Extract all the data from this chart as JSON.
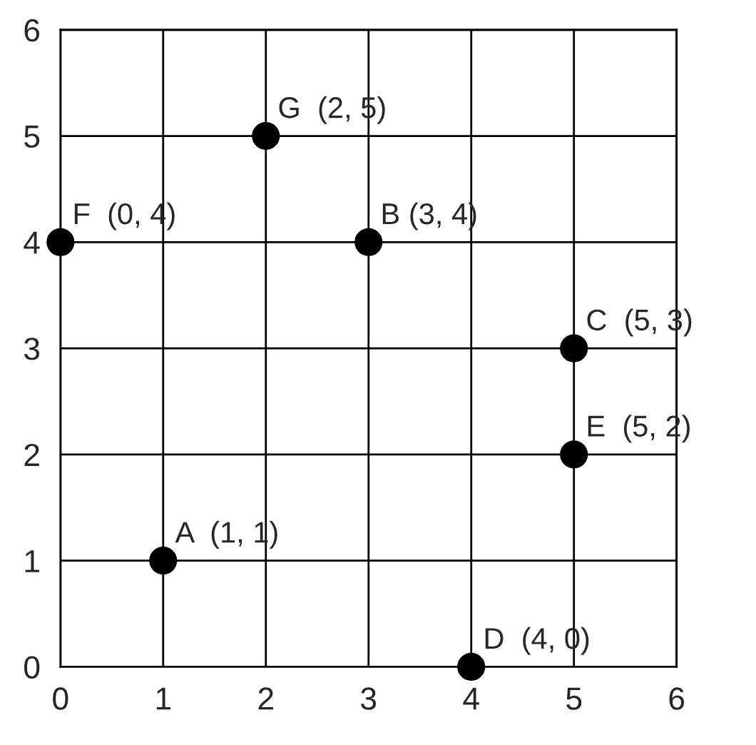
{
  "chart_data": {
    "type": "scatter",
    "x": [
      1,
      3,
      5,
      4,
      5,
      0,
      2
    ],
    "values": [
      1,
      4,
      3,
      0,
      2,
      4,
      5
    ],
    "value_labels": [
      "A  (1, 1)",
      "B (3, 4)",
      "C  (5, 3)",
      "D  (4, 0)",
      "E  (5, 2)",
      "F  (0, 4)",
      "G  (2, 5)"
    ],
    "color": "#000000",
    "marker": "circle",
    "xlim": [
      0,
      6
    ],
    "ylim": [
      0,
      6
    ],
    "xticks": [
      0,
      1,
      2,
      3,
      4,
      5,
      6
    ],
    "yticks": [
      0,
      1,
      2,
      3,
      4,
      5,
      6
    ],
    "grid": true
  }
}
